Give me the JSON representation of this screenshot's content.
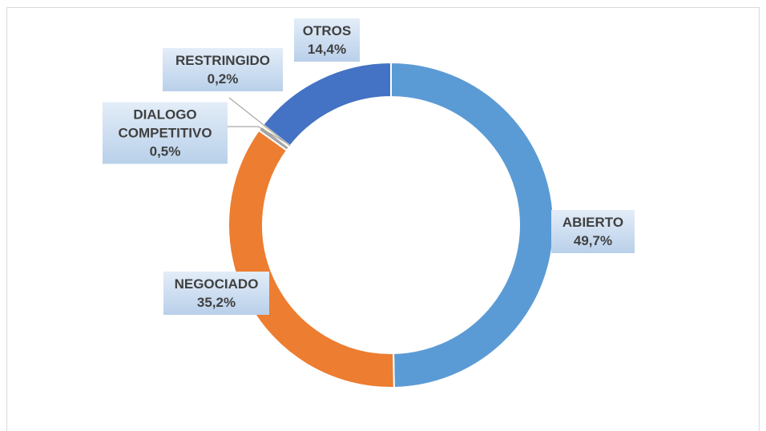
{
  "chart_data": {
    "type": "donut",
    "categories": [
      "ABIERTO",
      "NEGOCIADO",
      "DIALOGO COMPETITIVO",
      "RESTRINGIDO",
      "OTROS"
    ],
    "values": [
      49.7,
      35.2,
      0.5,
      0.2,
      14.4
    ],
    "value_labels": [
      "49,7%",
      "35,2%",
      "0,5%",
      "0,2%",
      "14,4%"
    ],
    "colors": [
      "#5b9bd5",
      "#ed7d31",
      "#a5a5a5",
      "#ffc000",
      "#4472c4"
    ]
  }
}
